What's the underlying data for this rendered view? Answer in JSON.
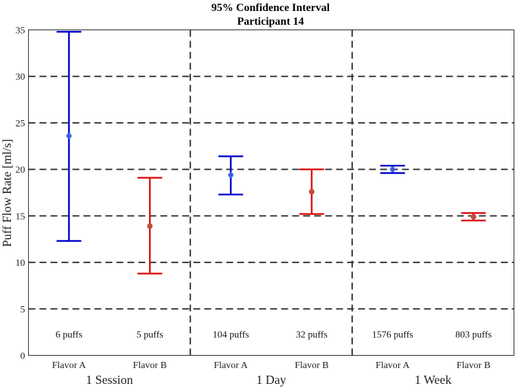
{
  "chart_data": {
    "type": "errorbar",
    "title": "95% Confidence Interval",
    "subtitle": "Participant 14",
    "ylabel": "Puff Flow Rate [ml/s]",
    "xlabel": "",
    "ylim": [
      0,
      35
    ],
    "yticks": [
      0,
      5,
      10,
      15,
      20,
      25,
      30,
      35
    ],
    "grid": "horizontal and group separators, dashed",
    "groups": [
      "1 Session",
      "1 Day",
      "1 Week"
    ],
    "categories": [
      "Flavor A",
      "Flavor B",
      "Flavor A",
      "Flavor B",
      "Flavor A",
      "Flavor B"
    ],
    "points": [
      {
        "group": "1 Session",
        "category": "Flavor A",
        "mean": 23.6,
        "lower": 12.3,
        "upper": 34.8,
        "label": "6 puffs",
        "color": "#0000cc"
      },
      {
        "group": "1 Session",
        "category": "Flavor B",
        "mean": 13.9,
        "lower": 8.8,
        "upper": 19.1,
        "label": "5 puffs",
        "color": "#dd1111"
      },
      {
        "group": "1 Day",
        "category": "Flavor A",
        "mean": 19.4,
        "lower": 17.3,
        "upper": 21.4,
        "label": "104 puffs",
        "color": "#0000cc"
      },
      {
        "group": "1 Day",
        "category": "Flavor B",
        "mean": 17.6,
        "lower": 15.2,
        "upper": 20.0,
        "label": "32 puffs",
        "color": "#dd1111"
      },
      {
        "group": "1 Week",
        "category": "Flavor A",
        "mean": 20.0,
        "lower": 19.6,
        "upper": 20.4,
        "label": "1576 puffs",
        "color": "#0000cc"
      },
      {
        "group": "1 Week",
        "category": "Flavor B",
        "mean": 14.9,
        "lower": 14.5,
        "upper": 15.3,
        "label": "803 puffs",
        "color": "#dd1111"
      }
    ],
    "count_label_y": 2.3
  }
}
